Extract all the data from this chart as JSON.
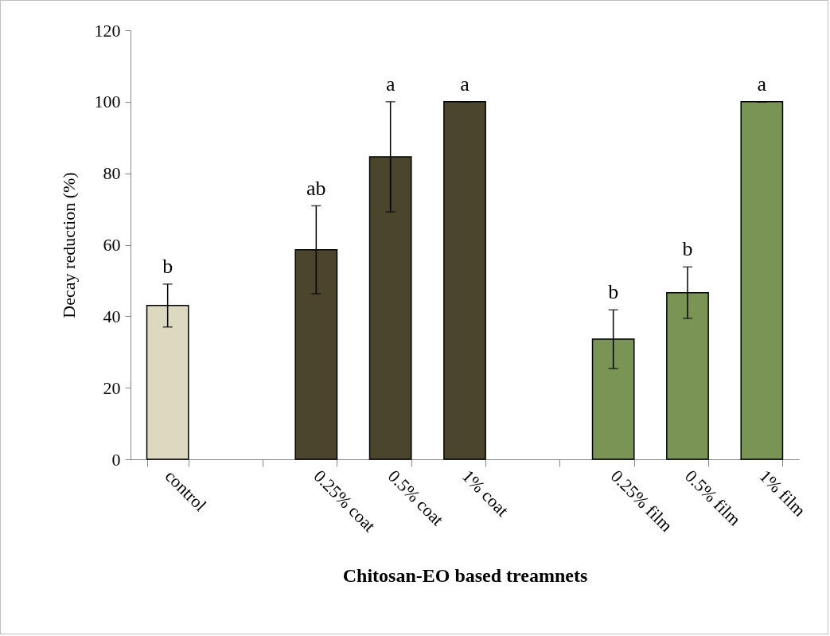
{
  "chart_data": {
    "type": "bar",
    "xlabel": "Chitosan-EO based treamnets",
    "ylabel": "Decay reduction (%)",
    "categories": [
      "control",
      null,
      "0.25% coat",
      "0.5% coat",
      "1% coat",
      null,
      "0.25% film",
      "0.5% film",
      "1% film"
    ],
    "values": [
      43.0,
      null,
      58.6,
      84.6,
      100,
      null,
      33.6,
      46.6,
      100
    ],
    "errors": [
      6.0,
      null,
      12.3,
      15.4,
      0,
      null,
      8.2,
      7.2,
      0
    ],
    "colors": [
      "#ddd8c0",
      null,
      "#4a452c",
      "#4a452c",
      "#4a452c",
      null,
      "#7a9455",
      "#7a9455",
      "#7a9455"
    ],
    "ylim": [
      0,
      120
    ],
    "yticks": [
      0,
      20,
      40,
      60,
      80,
      100,
      120
    ],
    "grid": false,
    "annotations": [
      "b",
      "ab",
      "a",
      "a",
      "b",
      "b",
      "a"
    ]
  }
}
